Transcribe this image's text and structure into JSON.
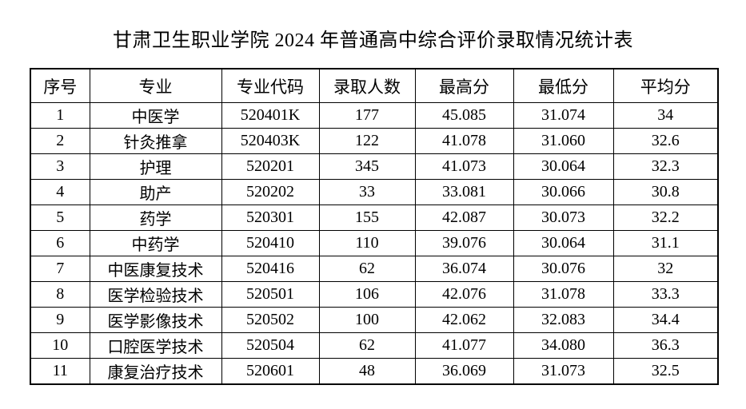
{
  "page": {
    "title": "甘肃卫生职业学院 2024 年普通高中综合评价录取情况统计表"
  },
  "table": {
    "headers": [
      "序号",
      "专业",
      "专业代码",
      "录取人数",
      "最高分",
      "最低分",
      "平均分"
    ],
    "rows": [
      [
        "1",
        "中医学",
        "520401K",
        "177",
        "45.085",
        "31.074",
        "34"
      ],
      [
        "2",
        "针灸推拿",
        "520403K",
        "122",
        "41.078",
        "31.060",
        "32.6"
      ],
      [
        "3",
        "护理",
        "520201",
        "345",
        "41.073",
        "30.064",
        "32.3"
      ],
      [
        "4",
        "助产",
        "520202",
        "33",
        "33.081",
        "30.066",
        "30.8"
      ],
      [
        "5",
        "药学",
        "520301",
        "155",
        "42.087",
        "30.073",
        "32.2"
      ],
      [
        "6",
        "中药学",
        "520410",
        "110",
        "39.076",
        "30.064",
        "31.1"
      ],
      [
        "7",
        "中医康复技术",
        "520416",
        "62",
        "36.074",
        "30.076",
        "32"
      ],
      [
        "8",
        "医学检验技术",
        "520501",
        "106",
        "42.076",
        "31.078",
        "33.3"
      ],
      [
        "9",
        "医学影像技术",
        "520502",
        "100",
        "42.062",
        "32.083",
        "34.4"
      ],
      [
        "10",
        "口腔医学技术",
        "520504",
        "62",
        "41.077",
        "34.080",
        "36.3"
      ],
      [
        "11",
        "康复治疗技术",
        "520601",
        "48",
        "36.069",
        "31.073",
        "32.5"
      ]
    ]
  },
  "colors": {
    "background": "#ffffff",
    "text": "#000000",
    "border": "#000000"
  }
}
